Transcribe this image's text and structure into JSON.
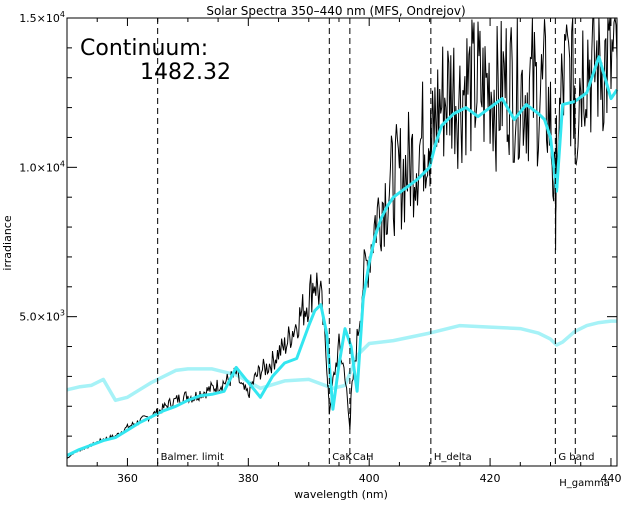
{
  "chart_data": {
    "type": "line",
    "title": "Solar Spectra 350–440 nm (MFS, Ondrejov)",
    "xlabel": "wavelength (nm)",
    "ylabel": "irradiance",
    "xlim": [
      350,
      441
    ],
    "ylim": [
      0,
      15000
    ],
    "x_ticks": [
      360,
      380,
      400,
      420,
      440
    ],
    "x_tick_labels": [
      "360",
      "380",
      "400",
      "420",
      "440"
    ],
    "y_ticks": [
      5000,
      10000,
      15000
    ],
    "y_tick_labels": [
      {
        "mant": "5.0×10",
        "exp": "3"
      },
      {
        "mant": "1.0×10",
        "exp": "4"
      },
      {
        "mant": "1.5×10",
        "exp": "4"
      }
    ],
    "annotation": {
      "label": "Continuum:",
      "value": "1482.32"
    },
    "vertical_lines": [
      {
        "x": 365,
        "label": "Balmer. limit"
      },
      {
        "x": 393.4,
        "label": "CaK"
      },
      {
        "x": 396.8,
        "label": "CaH"
      },
      {
        "x": 410.2,
        "label": "H_delta"
      },
      {
        "x": 430.8,
        "label": "G band"
      },
      {
        "x": 434.1,
        "label": "H_gamma"
      }
    ],
    "series": [
      {
        "style": "raw",
        "color": "#000000",
        "x": [
          350,
          351,
          352,
          353,
          354,
          355,
          356,
          357,
          358,
          359,
          360,
          361,
          362,
          363,
          364,
          365,
          366,
          367,
          368,
          369,
          370,
          371,
          372,
          373,
          374,
          375,
          376,
          377,
          378,
          379,
          380,
          381,
          382,
          383,
          384,
          385,
          386,
          387,
          388,
          389,
          390,
          391,
          392,
          393,
          393.4,
          394,
          395,
          396,
          396.8,
          397,
          398,
          399,
          400,
          401,
          402,
          403,
          404,
          405,
          406,
          407,
          408,
          409,
          410,
          410.2,
          411,
          412,
          413,
          414,
          415,
          416,
          417,
          418,
          419,
          420,
          421,
          422,
          423,
          424,
          425,
          426,
          427,
          428,
          429,
          430,
          430.8,
          431,
          432,
          433,
          434,
          434.1,
          435,
          436,
          437,
          438,
          439,
          440,
          441
        ],
        "y": [
          250,
          420,
          520,
          600,
          700,
          800,
          900,
          950,
          1000,
          1150,
          1300,
          1400,
          1500,
          1600,
          1700,
          1800,
          1950,
          2100,
          2200,
          2300,
          2350,
          2300,
          2450,
          2500,
          2600,
          2700,
          2800,
          2900,
          3100,
          2600,
          2400,
          2900,
          3200,
          3300,
          3500,
          3800,
          4000,
          4400,
          4800,
          5200,
          5600,
          6300,
          5600,
          3400,
          1800,
          2800,
          4000,
          3100,
          1200,
          2300,
          4200,
          6200,
          7100,
          8200,
          8800,
          9200,
          9500,
          9700,
          9900,
          10200,
          10600,
          11000,
          11500,
          10400,
          11800,
          12200,
          12500,
          12700,
          12300,
          12900,
          12600,
          12800,
          12500,
          12900,
          12300,
          12700,
          13000,
          12600,
          12800,
          12500,
          12700,
          12400,
          12600,
          11500,
          8600,
          10100,
          12700,
          13200,
          12900,
          11300,
          13400,
          13900,
          13200,
          13700,
          13500,
          13400,
          13600
        ]
      },
      {
        "style": "smoothed",
        "color": "#33e6f0",
        "x": [
          350,
          352,
          354,
          356,
          358,
          360,
          362,
          364,
          366,
          368,
          370,
          372,
          374,
          376,
          378,
          380,
          382,
          384,
          386,
          388,
          390,
          391,
          392,
          393,
          394,
          395,
          396,
          397,
          398,
          399,
          400,
          401,
          402,
          403,
          404,
          406,
          408,
          410,
          411,
          412,
          414,
          416,
          418,
          420,
          422,
          424,
          426,
          428,
          429,
          430,
          431,
          432,
          434,
          436,
          438,
          440,
          441
        ],
        "y": [
          350,
          550,
          700,
          850,
          950,
          1200,
          1450,
          1650,
          1850,
          2000,
          2200,
          2350,
          2400,
          2500,
          3300,
          2800,
          2300,
          3000,
          3450,
          3600,
          4700,
          5200,
          5400,
          4400,
          1900,
          3400,
          4600,
          4000,
          2500,
          5600,
          6800,
          7700,
          8300,
          8700,
          9000,
          9300,
          9600,
          10000,
          10800,
          11400,
          11800,
          12000,
          11700,
          12000,
          12300,
          11600,
          12100,
          11800,
          11600,
          11000,
          9200,
          12100,
          12200,
          12500,
          13700,
          12300,
          12600
        ]
      },
      {
        "style": "continuum",
        "color": "#a6f2f7",
        "x": [
          350,
          352,
          354,
          356,
          358,
          360,
          362,
          364,
          366,
          368,
          370,
          374,
          378,
          382,
          386,
          390,
          394,
          396,
          398,
          400,
          404,
          410,
          415,
          420,
          425,
          428,
          430,
          431,
          432,
          434,
          436,
          438,
          440,
          441
        ],
        "y": [
          2550,
          2650,
          2700,
          2900,
          2200,
          2300,
          2550,
          2800,
          3000,
          3200,
          3250,
          3250,
          3050,
          2600,
          2850,
          2900,
          2600,
          2700,
          3700,
          4100,
          4200,
          4450,
          4700,
          4650,
          4600,
          4450,
          4250,
          4050,
          4150,
          4500,
          4700,
          4800,
          4850,
          4850
        ]
      }
    ]
  }
}
